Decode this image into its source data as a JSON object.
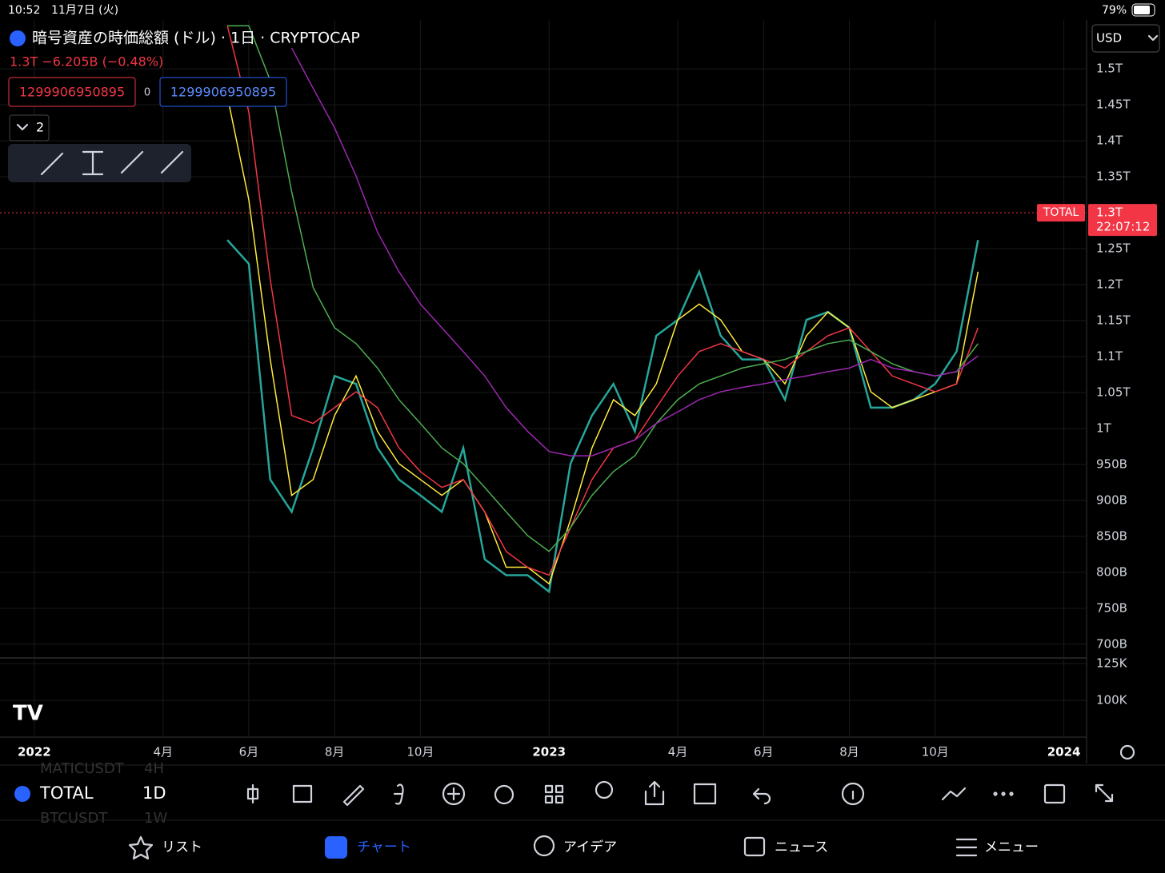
{
  "status_bar": {
    "time": "10:52",
    "date": "11月7日 (火)",
    "battery": "79%"
  },
  "header": {
    "title": "暗号資産の時価総額 (ドル) · 1日 · CRYPTOCAP",
    "change": "1.3T −6.205B (−0.48%)",
    "sell_price": "1299906950895",
    "spread": "0",
    "buy_price": "1299906950895",
    "indicators_count": "2"
  },
  "currency": "USD",
  "price_tag": {
    "symbol": "TOTAL",
    "countdown": "22:07:12"
  },
  "chart_data": {
    "type": "line",
    "x": [
      4.5,
      5,
      5.5,
      6,
      6.5,
      7,
      7.5,
      8,
      8.5,
      9,
      9.5,
      10,
      10.5,
      11,
      11.5,
      12,
      12.5,
      13,
      13.5,
      14,
      14.5,
      15,
      15.5,
      16,
      16.5,
      17,
      17.5,
      18,
      18.5,
      19,
      19.5,
      20,
      20.5,
      21,
      21.5,
      22
    ],
    "series": [
      {
        "color": "#26a69a",
        "values": [
          1262,
          1229,
          929,
          884,
          973,
          1073,
          1062,
          973,
          929,
          907,
          884,
          973,
          818,
          796,
          796,
          773,
          951,
          1018,
          1062,
          996,
          1129,
          1151,
          1218,
          1129,
          1096,
          1096,
          1040,
          1151,
          1162,
          1140,
          1029,
          1029,
          1040,
          1062,
          1107,
          1262
        ]
      },
      {
        "color": "#ffeb3b",
        "values": [
          1462,
          1318,
          1096,
          907,
          929,
          1018,
          1073,
          996,
          951,
          929,
          907,
          929,
          884,
          807,
          807,
          784,
          873,
          973,
          1040,
          1018,
          1062,
          1151,
          1173,
          1151,
          1107,
          1096,
          1062,
          1129,
          1162,
          1140,
          1051,
          1029,
          1040,
          1051,
          1062,
          1218
        ]
      },
      {
        "color": "#f23645",
        "values": [
          1560,
          1440,
          1207,
          1018,
          1007,
          1029,
          1051,
          1029,
          973,
          940,
          918,
          929,
          884,
          829,
          807,
          796,
          862,
          929,
          973,
          984,
          1029,
          1073,
          1107,
          1118,
          1107,
          1096,
          1084,
          1107,
          1129,
          1140,
          1107,
          1073,
          1062,
          1051,
          1062,
          1140
        ]
      },
      {
        "color": "#4caf50",
        "values": [
          1560,
          1560,
          1484,
          1329,
          1196,
          1140,
          1118,
          1084,
          1040,
          1007,
          973,
          951,
          918,
          884,
          851,
          829,
          862,
          907,
          940,
          962,
          1007,
          1040,
          1062,
          1073,
          1084,
          1090,
          1096,
          1107,
          1118,
          1123,
          1107,
          1090,
          1079,
          1073,
          1079,
          1118
        ]
      },
      {
        "color": "#9c27b0",
        "values": [
          null,
          null,
          null,
          1529,
          1473,
          1418,
          1351,
          1273,
          1218,
          1173,
          1140,
          1107,
          1073,
          1029,
          996,
          968,
          962,
          962,
          973,
          984,
          1007,
          1023,
          1040,
          1051,
          1057,
          1062,
          1068,
          1073,
          1079,
          1084,
          1096,
          1084,
          1079,
          1073,
          1079,
          1101
        ]
      }
    ],
    "last_price": {
      "value": 1300,
      "label": "1.3T"
    },
    "xlim": [
      -0.8,
      24.53
    ],
    "xticks": [
      {
        "value": 0,
        "label": "2022"
      },
      {
        "value": 3,
        "label": "4月"
      },
      {
        "value": 5,
        "label": "6月"
      },
      {
        "value": 7,
        "label": "8月"
      },
      {
        "value": 9,
        "label": "10月"
      },
      {
        "value": 12,
        "label": "2023"
      },
      {
        "value": 15,
        "label": "4月"
      },
      {
        "value": 17,
        "label": "6月"
      },
      {
        "value": 19,
        "label": "8月"
      },
      {
        "value": 21,
        "label": "10月"
      },
      {
        "value": 24,
        "label": "2024"
      }
    ],
    "ylim": [
      682,
      1568
    ],
    "yticks": [
      {
        "value": 1500,
        "label": "1.5T"
      },
      {
        "value": 1450,
        "label": "1.45T"
      },
      {
        "value": 1400,
        "label": "1.4T"
      },
      {
        "value": 1350,
        "label": "1.35T"
      },
      {
        "value": 1250,
        "label": "1.25T"
      },
      {
        "value": 1200,
        "label": "1.2T"
      },
      {
        "value": 1150,
        "label": "1.15T"
      },
      {
        "value": 1100,
        "label": "1.1T"
      },
      {
        "value": 1050,
        "label": "1.05T"
      },
      {
        "value": 1000,
        "label": "1T"
      },
      {
        "value": 950,
        "label": "950B"
      },
      {
        "value": 900,
        "label": "900B"
      },
      {
        "value": 850,
        "label": "850B"
      },
      {
        "value": 800,
        "label": "800B"
      },
      {
        "value": 750,
        "label": "750B"
      },
      {
        "value": 700,
        "label": "700B"
      }
    ],
    "volume_ylim": [
      75,
      127.7
    ],
    "volume_yticks": [
      {
        "value": 125,
        "label": "125K"
      },
      {
        "value": 100,
        "label": "100K"
      }
    ],
    "grid": true
  },
  "toolbar": {
    "symbol": "TOTAL",
    "interval": "1D",
    "ghost_rows": [
      [
        "MATICUSDT",
        "4H"
      ],
      [
        "BTCUSDT",
        "1W"
      ]
    ]
  },
  "tabs": [
    "リスト",
    "チャート",
    "アイデア",
    "ニュース",
    "メニュー"
  ]
}
